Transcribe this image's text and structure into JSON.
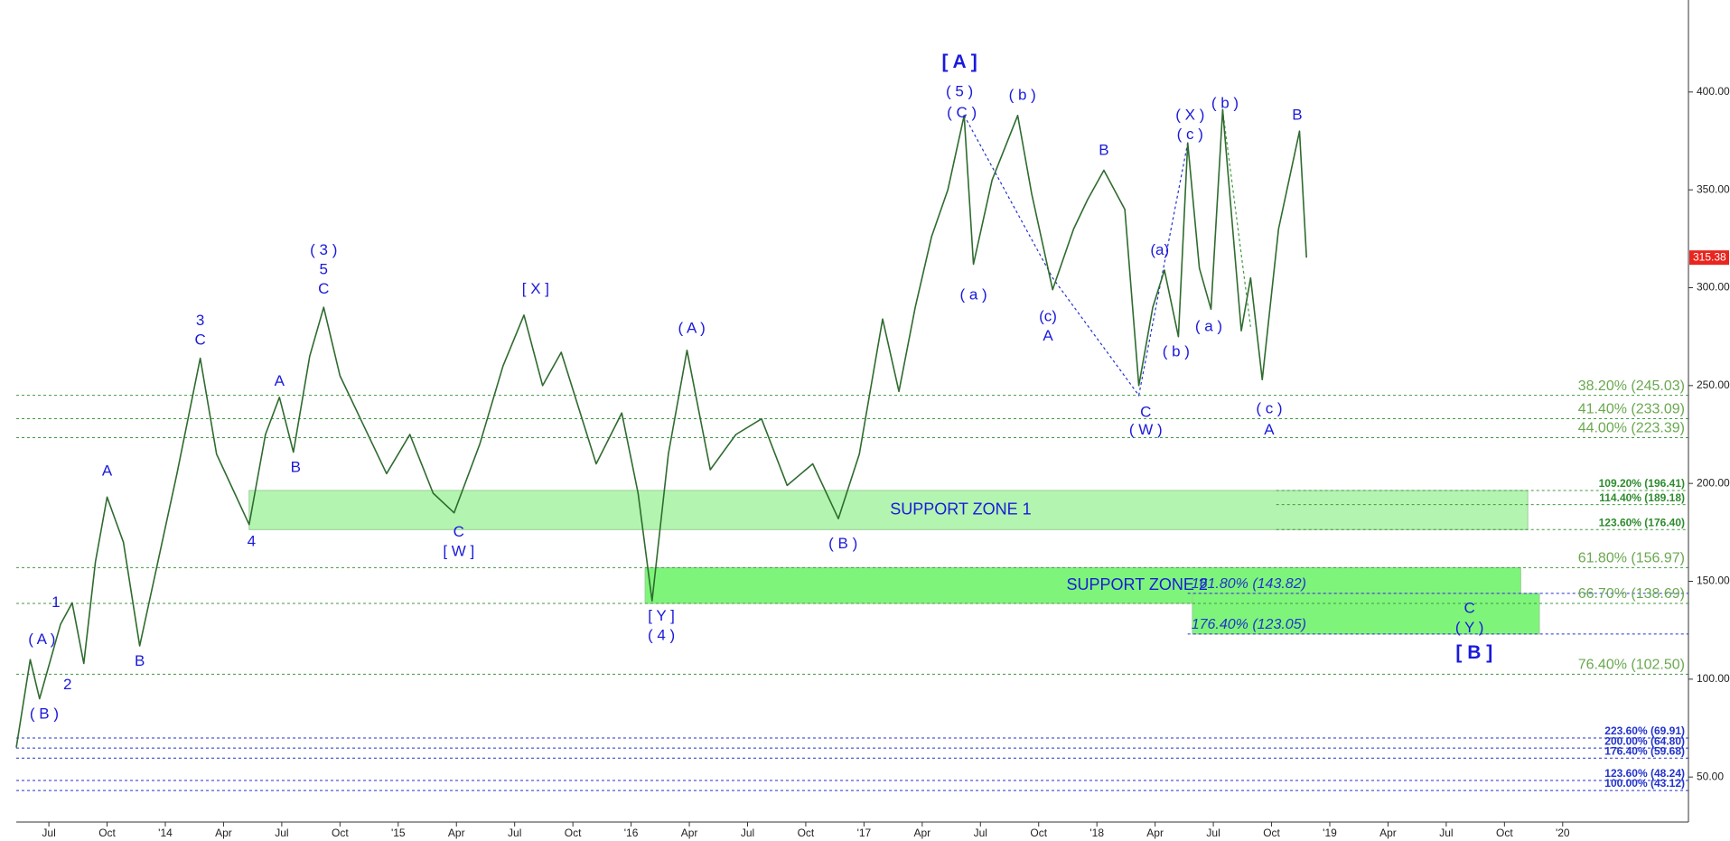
{
  "chart_data": {
    "type": "line",
    "xlim": [
      2013.36,
      2020.54
    ],
    "ylim": [
      27,
      447
    ],
    "xticks": [
      {
        "value": 2013.5,
        "label": "Jul"
      },
      {
        "value": 2013.75,
        "label": "Oct"
      },
      {
        "value": 2014.0,
        "label": "'14"
      },
      {
        "value": 2014.25,
        "label": "Apr"
      },
      {
        "value": 2014.5,
        "label": "Jul"
      },
      {
        "value": 2014.75,
        "label": "Oct"
      },
      {
        "value": 2015.0,
        "label": "'15"
      },
      {
        "value": 2015.25,
        "label": "Apr"
      },
      {
        "value": 2015.5,
        "label": "Jul"
      },
      {
        "value": 2015.75,
        "label": "Oct"
      },
      {
        "value": 2016.0,
        "label": "'16"
      },
      {
        "value": 2016.25,
        "label": "Apr"
      },
      {
        "value": 2016.5,
        "label": "Jul"
      },
      {
        "value": 2016.75,
        "label": "Oct"
      },
      {
        "value": 2017.0,
        "label": "'17"
      },
      {
        "value": 2017.25,
        "label": "Apr"
      },
      {
        "value": 2017.5,
        "label": "Jul"
      },
      {
        "value": 2017.75,
        "label": "Oct"
      },
      {
        "value": 2018.0,
        "label": "'18"
      },
      {
        "value": 2018.25,
        "label": "Apr"
      },
      {
        "value": 2018.5,
        "label": "Jul"
      },
      {
        "value": 2018.75,
        "label": "Oct"
      },
      {
        "value": 2019.0,
        "label": "'19"
      },
      {
        "value": 2019.25,
        "label": "Apr"
      },
      {
        "value": 2019.5,
        "label": "Jul"
      },
      {
        "value": 2019.75,
        "label": "Oct"
      },
      {
        "value": 2020.0,
        "label": "'20"
      }
    ],
    "yticks": [
      {
        "value": 50,
        "label": "50.00"
      },
      {
        "value": 100,
        "label": "100.00"
      },
      {
        "value": 150,
        "label": "150.00"
      },
      {
        "value": 200,
        "label": "200.00"
      },
      {
        "value": 250,
        "label": "250.00"
      },
      {
        "value": 300,
        "label": "300.00"
      },
      {
        "value": 350,
        "label": "350.00"
      },
      {
        "value": 400,
        "label": "400.00"
      }
    ],
    "series": [
      {
        "color": "#2f6b2f",
        "x": [
          2013.36,
          2013.42,
          2013.46,
          2013.55,
          2013.6,
          2013.65,
          2013.7,
          2013.75,
          2013.82,
          2013.89,
          2013.95,
          2014.05,
          2014.15,
          2014.22,
          2014.36,
          2014.43,
          2014.49,
          2014.55,
          2014.62,
          2014.68,
          2014.75,
          2014.85,
          2014.95,
          2015.05,
          2015.15,
          2015.24,
          2015.35,
          2015.45,
          2015.54,
          2015.62,
          2015.7,
          2015.85,
          2015.96,
          2016.03,
          2016.09,
          2016.16,
          2016.24,
          2016.34,
          2016.45,
          2016.56,
          2016.67,
          2016.78,
          2016.89,
          2016.98,
          2017.08,
          2017.15,
          2017.22,
          2017.29,
          2017.36,
          2017.43,
          2017.47,
          2017.55,
          2017.66,
          2017.72,
          2017.81,
          2017.9,
          2017.96,
          2018.03,
          2018.12,
          2018.18,
          2018.24,
          2018.29,
          2018.35,
          2018.39,
          2018.44,
          2018.49,
          2018.54,
          2018.62,
          2018.66,
          2018.71,
          2018.78,
          2018.87,
          2018.9
        ],
        "values": [
          65,
          110,
          90,
          128,
          139,
          108,
          160,
          193,
          170,
          117,
          150,
          205,
          264,
          215,
          179,
          225,
          244,
          216,
          265,
          290,
          255,
          230,
          205,
          225,
          195,
          185,
          220,
          260,
          286,
          250,
          267,
          210,
          236,
          195,
          140,
          215,
          268,
          207,
          225,
          233,
          199,
          210,
          182,
          215,
          284,
          247,
          290,
          326,
          350,
          388,
          312,
          355,
          388,
          348,
          299,
          330,
          345,
          360,
          340,
          250,
          290,
          309,
          275,
          374,
          310,
          289,
          391,
          278,
          305,
          253,
          330,
          380,
          315.38
        ],
        "last_label": "315.38",
        "last_color": "#e8251f"
      }
    ],
    "levels": [
      {
        "value": 245.03,
        "label": "38.20% (245.03)",
        "color": "#3f9b3f",
        "label_color": "#6aa84f"
      },
      {
        "value": 233.09,
        "label": "41.40% (233.09)",
        "color": "#3f9b3f",
        "label_color": "#6aa84f"
      },
      {
        "value": 223.39,
        "label": "44.00% (223.39)",
        "color": "#3f9b3f",
        "label_color": "#6aa84f"
      },
      {
        "value": 196.41,
        "label": "109.20% (196.41)",
        "color": "#3f9b3f",
        "label_color": "#2e8b2e",
        "x0": 2018.77,
        "bold": true
      },
      {
        "value": 189.18,
        "label": "114.40% (189.18)",
        "color": "#3f9b3f",
        "label_color": "#2e8b2e",
        "x0": 2018.77,
        "bold": true
      },
      {
        "value": 176.4,
        "label": "123.60% (176.40)",
        "color": "#3f9b3f",
        "label_color": "#2e8b2e",
        "x0": 2018.77,
        "bold": true
      },
      {
        "value": 156.97,
        "label": "61.80% (156.97)",
        "color": "#3f9b3f",
        "label_color": "#6aa84f"
      },
      {
        "value": 143.82,
        "label": "161.80% (143.82)",
        "color": "#2233cc",
        "label_color": "#2233cc",
        "x0": 2018.39,
        "label_at": "start",
        "italic": true
      },
      {
        "value": 138.69,
        "label": "66.70% (138.69)",
        "color": "#3f9b3f",
        "label_color": "#6aa84f"
      },
      {
        "value": 123.05,
        "label": "176.40% (123.05)",
        "color": "#2233cc",
        "label_color": "#2233cc",
        "x0": 2018.39,
        "label_at": "start",
        "italic": true
      },
      {
        "value": 102.5,
        "label": "76.40% (102.50)",
        "color": "#3f9b3f",
        "label_color": "#6aa84f"
      },
      {
        "value": 69.91,
        "label": "223.60% (69.91)",
        "color": "#2233cc",
        "label_color": "#2233cc",
        "bold": true
      },
      {
        "value": 64.8,
        "label": "200.00% (64.80)",
        "color": "#2233cc",
        "label_color": "#2233cc",
        "bold": true
      },
      {
        "value": 59.68,
        "label": "176.40% (59.68)",
        "color": "#2233cc",
        "label_color": "#2233cc",
        "bold": true
      },
      {
        "value": 48.24,
        "label": "123.60% (48.24)",
        "color": "#2233cc",
        "label_color": "#2233cc",
        "bold": true
      },
      {
        "value": 43.12,
        "label": "100.00% (43.12)",
        "color": "#2233cc",
        "label_color": "#2233cc",
        "bold": true
      }
    ],
    "zones": [
      {
        "label": "SUPPORT ZONE 1",
        "x0": 2014.36,
        "x1": 2019.85,
        "y0": 176.4,
        "y1": 196.41,
        "color": "#b3f5b0"
      },
      {
        "label": "SUPPORT ZONE 2",
        "x0": 2016.06,
        "x1": 2019.82,
        "y0": 138.69,
        "y1": 156.97,
        "color": "#7ef57a"
      },
      {
        "x0": 2018.41,
        "x1": 2019.9,
        "y0": 123.05,
        "y1": 143.82,
        "color": "#7ef57a"
      }
    ],
    "connectors": [
      {
        "color": "#2233cc",
        "x": [
          2017.43,
          2017.81,
          2018.18,
          2018.39
        ],
        "y": [
          388,
          305,
          245,
          374
        ]
      },
      {
        "color": "#3f9b3f",
        "x": [
          2018.54,
          2018.66
        ],
        "y": [
          391,
          280
        ]
      }
    ],
    "annotations": [
      {
        "text": "( A )",
        "x": 2013.47,
        "y": 120
      },
      {
        "text": "( B )",
        "x": 2013.48,
        "y": 82
      },
      {
        "text": "1",
        "x": 2013.53,
        "y": 139
      },
      {
        "text": "2",
        "x": 2013.58,
        "y": 97
      },
      {
        "text": "A",
        "x": 2013.75,
        "y": 206
      },
      {
        "text": "B",
        "x": 2013.89,
        "y": 109
      },
      {
        "text": "3",
        "x": 2014.15,
        "y": 283
      },
      {
        "text": "C",
        "x": 2014.15,
        "y": 273
      },
      {
        "text": "4",
        "x": 2014.37,
        "y": 170
      },
      {
        "text": "A",
        "x": 2014.49,
        "y": 252
      },
      {
        "text": "B",
        "x": 2014.56,
        "y": 208
      },
      {
        "text": "( 3 )",
        "x": 2014.68,
        "y": 319
      },
      {
        "text": "5",
        "x": 2014.68,
        "y": 309
      },
      {
        "text": "C",
        "x": 2014.68,
        "y": 299
      },
      {
        "text": "C",
        "x": 2015.26,
        "y": 175
      },
      {
        "text": "[ W ]",
        "x": 2015.26,
        "y": 165
      },
      {
        "text": "[ X ]",
        "x": 2015.59,
        "y": 299
      },
      {
        "text": "( A )",
        "x": 2016.26,
        "y": 279
      },
      {
        "text": "[ Y ]",
        "x": 2016.13,
        "y": 132
      },
      {
        "text": "( 4 )",
        "x": 2016.13,
        "y": 122
      },
      {
        "text": "( B )",
        "x": 2016.91,
        "y": 169
      },
      {
        "text": "[ A ]",
        "x": 2017.41,
        "y": 415,
        "bold": true
      },
      {
        "text": "( 5 )",
        "x": 2017.41,
        "y": 400
      },
      {
        "text": "( C )",
        "x": 2017.42,
        "y": 389
      },
      {
        "text": "( a )",
        "x": 2017.47,
        "y": 296
      },
      {
        "text": "( b )",
        "x": 2017.68,
        "y": 398
      },
      {
        "text": "(c)",
        "x": 2017.79,
        "y": 285
      },
      {
        "text": "A",
        "x": 2017.79,
        "y": 275
      },
      {
        "text": "B",
        "x": 2018.03,
        "y": 370
      },
      {
        "text": "C",
        "x": 2018.21,
        "y": 236
      },
      {
        "text": "( W )",
        "x": 2018.21,
        "y": 227
      },
      {
        "text": "(a)",
        "x": 2018.27,
        "y": 319
      },
      {
        "text": "( b )",
        "x": 2018.34,
        "y": 267
      },
      {
        "text": "( X )",
        "x": 2018.4,
        "y": 388
      },
      {
        "text": "( c )",
        "x": 2018.4,
        "y": 378
      },
      {
        "text": "( a )",
        "x": 2018.48,
        "y": 280
      },
      {
        "text": "( b )",
        "x": 2018.55,
        "y": 394
      },
      {
        "text": "( c )",
        "x": 2018.74,
        "y": 238
      },
      {
        "text": "A",
        "x": 2018.74,
        "y": 227
      },
      {
        "text": "B",
        "x": 2018.86,
        "y": 388
      },
      {
        "text": "C",
        "x": 2019.6,
        "y": 136
      },
      {
        "text": "( Y )",
        "x": 2019.6,
        "y": 126
      },
      {
        "text": "[ B ]",
        "x": 2019.62,
        "y": 113,
        "bold": true
      }
    ]
  }
}
